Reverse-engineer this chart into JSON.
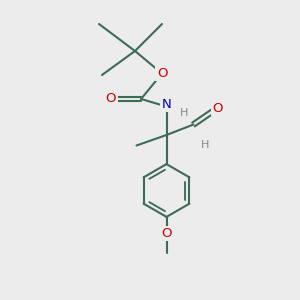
{
  "bg_color": "#ececec",
  "bond_color": "#3d6b55",
  "bond_width": 1.5,
  "atom_colors": {
    "O": "#cc0000",
    "N": "#0000bb",
    "H": "#888888",
    "C": "#3d6b55"
  },
  "font_size_atom": 9.5,
  "font_size_small": 8.0
}
